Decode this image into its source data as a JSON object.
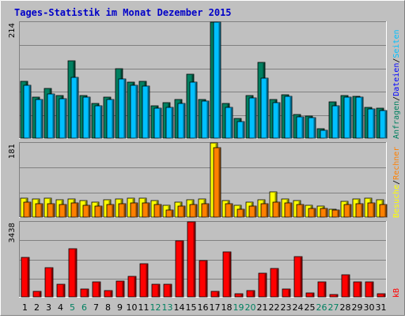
{
  "chart_data": [
    {
      "type": "bar",
      "title": "Tages-Statistik im Monat Dezember 2015",
      "panel": "top",
      "ylim": [
        0,
        214
      ],
      "ytick_label": "214",
      "grid": true,
      "x": [
        "1",
        "2",
        "3",
        "4",
        "5",
        "6",
        "7",
        "8",
        "9",
        "10",
        "11",
        "12",
        "13",
        "14",
        "15",
        "16",
        "17",
        "18",
        "19",
        "20",
        "21",
        "22",
        "23",
        "24",
        "25",
        "26",
        "27",
        "28",
        "29",
        "30",
        "31"
      ],
      "weekend_days": [
        "5",
        "6",
        "12",
        "13",
        "19",
        "20",
        "26",
        "27"
      ],
      "legend": [
        "Anfragen",
        "/",
        "Dateien",
        "/",
        "Seiten"
      ],
      "series": [
        {
          "name": "Anfragen",
          "color": "#008060",
          "values": [
            105,
            75,
            92,
            78,
            142,
            78,
            64,
            76,
            128,
            103,
            105,
            60,
            65,
            71,
            118,
            72,
            214,
            64,
            37,
            78,
            140,
            72,
            80,
            44,
            41,
            18,
            67,
            79,
            77,
            57,
            55
          ]
        },
        {
          "name": "Dateien",
          "color": "#00c0ff",
          "values": [
            98,
            71,
            82,
            73,
            112,
            75,
            59,
            72,
            109,
            97,
            96,
            55,
            57,
            64,
            104,
            69,
            214,
            57,
            31,
            74,
            110,
            65,
            77,
            40,
            38,
            14,
            60,
            75,
            75,
            54,
            51
          ]
        }
      ]
    },
    {
      "type": "bar",
      "panel": "middle",
      "ylim": [
        0,
        181
      ],
      "ytick_label": "181",
      "grid": true,
      "x": [
        "1",
        "2",
        "3",
        "4",
        "5",
        "6",
        "7",
        "8",
        "9",
        "10",
        "11",
        "12",
        "13",
        "14",
        "15",
        "16",
        "17",
        "18",
        "19",
        "20",
        "21",
        "22",
        "23",
        "24",
        "25",
        "26",
        "27",
        "28",
        "29",
        "30",
        "31"
      ],
      "legend": [
        "Besuche",
        "/",
        "Rechner"
      ],
      "series": [
        {
          "name": "Besuche",
          "color": "#ffff00",
          "values": [
            46,
            44,
            46,
            42,
            44,
            40,
            36,
            42,
            44,
            46,
            46,
            40,
            28,
            36,
            42,
            44,
            181,
            40,
            28,
            36,
            42,
            62,
            44,
            40,
            28,
            26,
            20,
            38,
            44,
            46,
            42
          ]
        },
        {
          "name": "Rechner",
          "color": "#ff8000",
          "values": [
            36,
            32,
            32,
            30,
            34,
            28,
            26,
            30,
            32,
            34,
            34,
            30,
            18,
            26,
            30,
            32,
            170,
            32,
            20,
            26,
            32,
            36,
            34,
            30,
            22,
            22,
            18,
            30,
            32,
            34,
            30
          ]
        }
      ]
    },
    {
      "type": "bar",
      "panel": "bottom",
      "ylim": [
        0,
        3438
      ],
      "ytick_label": "3438",
      "grid": true,
      "x": [
        "1",
        "2",
        "3",
        "4",
        "5",
        "6",
        "7",
        "8",
        "9",
        "10",
        "11",
        "12",
        "13",
        "14",
        "15",
        "16",
        "17",
        "18",
        "19",
        "20",
        "21",
        "22",
        "23",
        "24",
        "25",
        "26",
        "27",
        "28",
        "29",
        "30",
        "31"
      ],
      "legend": [
        "kB"
      ],
      "series": [
        {
          "name": "kB",
          "color": "#ff0000",
          "values": [
            1820,
            250,
            1330,
            570,
            2190,
            360,
            690,
            280,
            720,
            930,
            1530,
            570,
            570,
            2580,
            3438,
            1660,
            250,
            2060,
            130,
            280,
            1090,
            1300,
            360,
            1830,
            180,
            670,
            100,
            1030,
            700,
            690,
            130
          ]
        }
      ]
    }
  ]
}
